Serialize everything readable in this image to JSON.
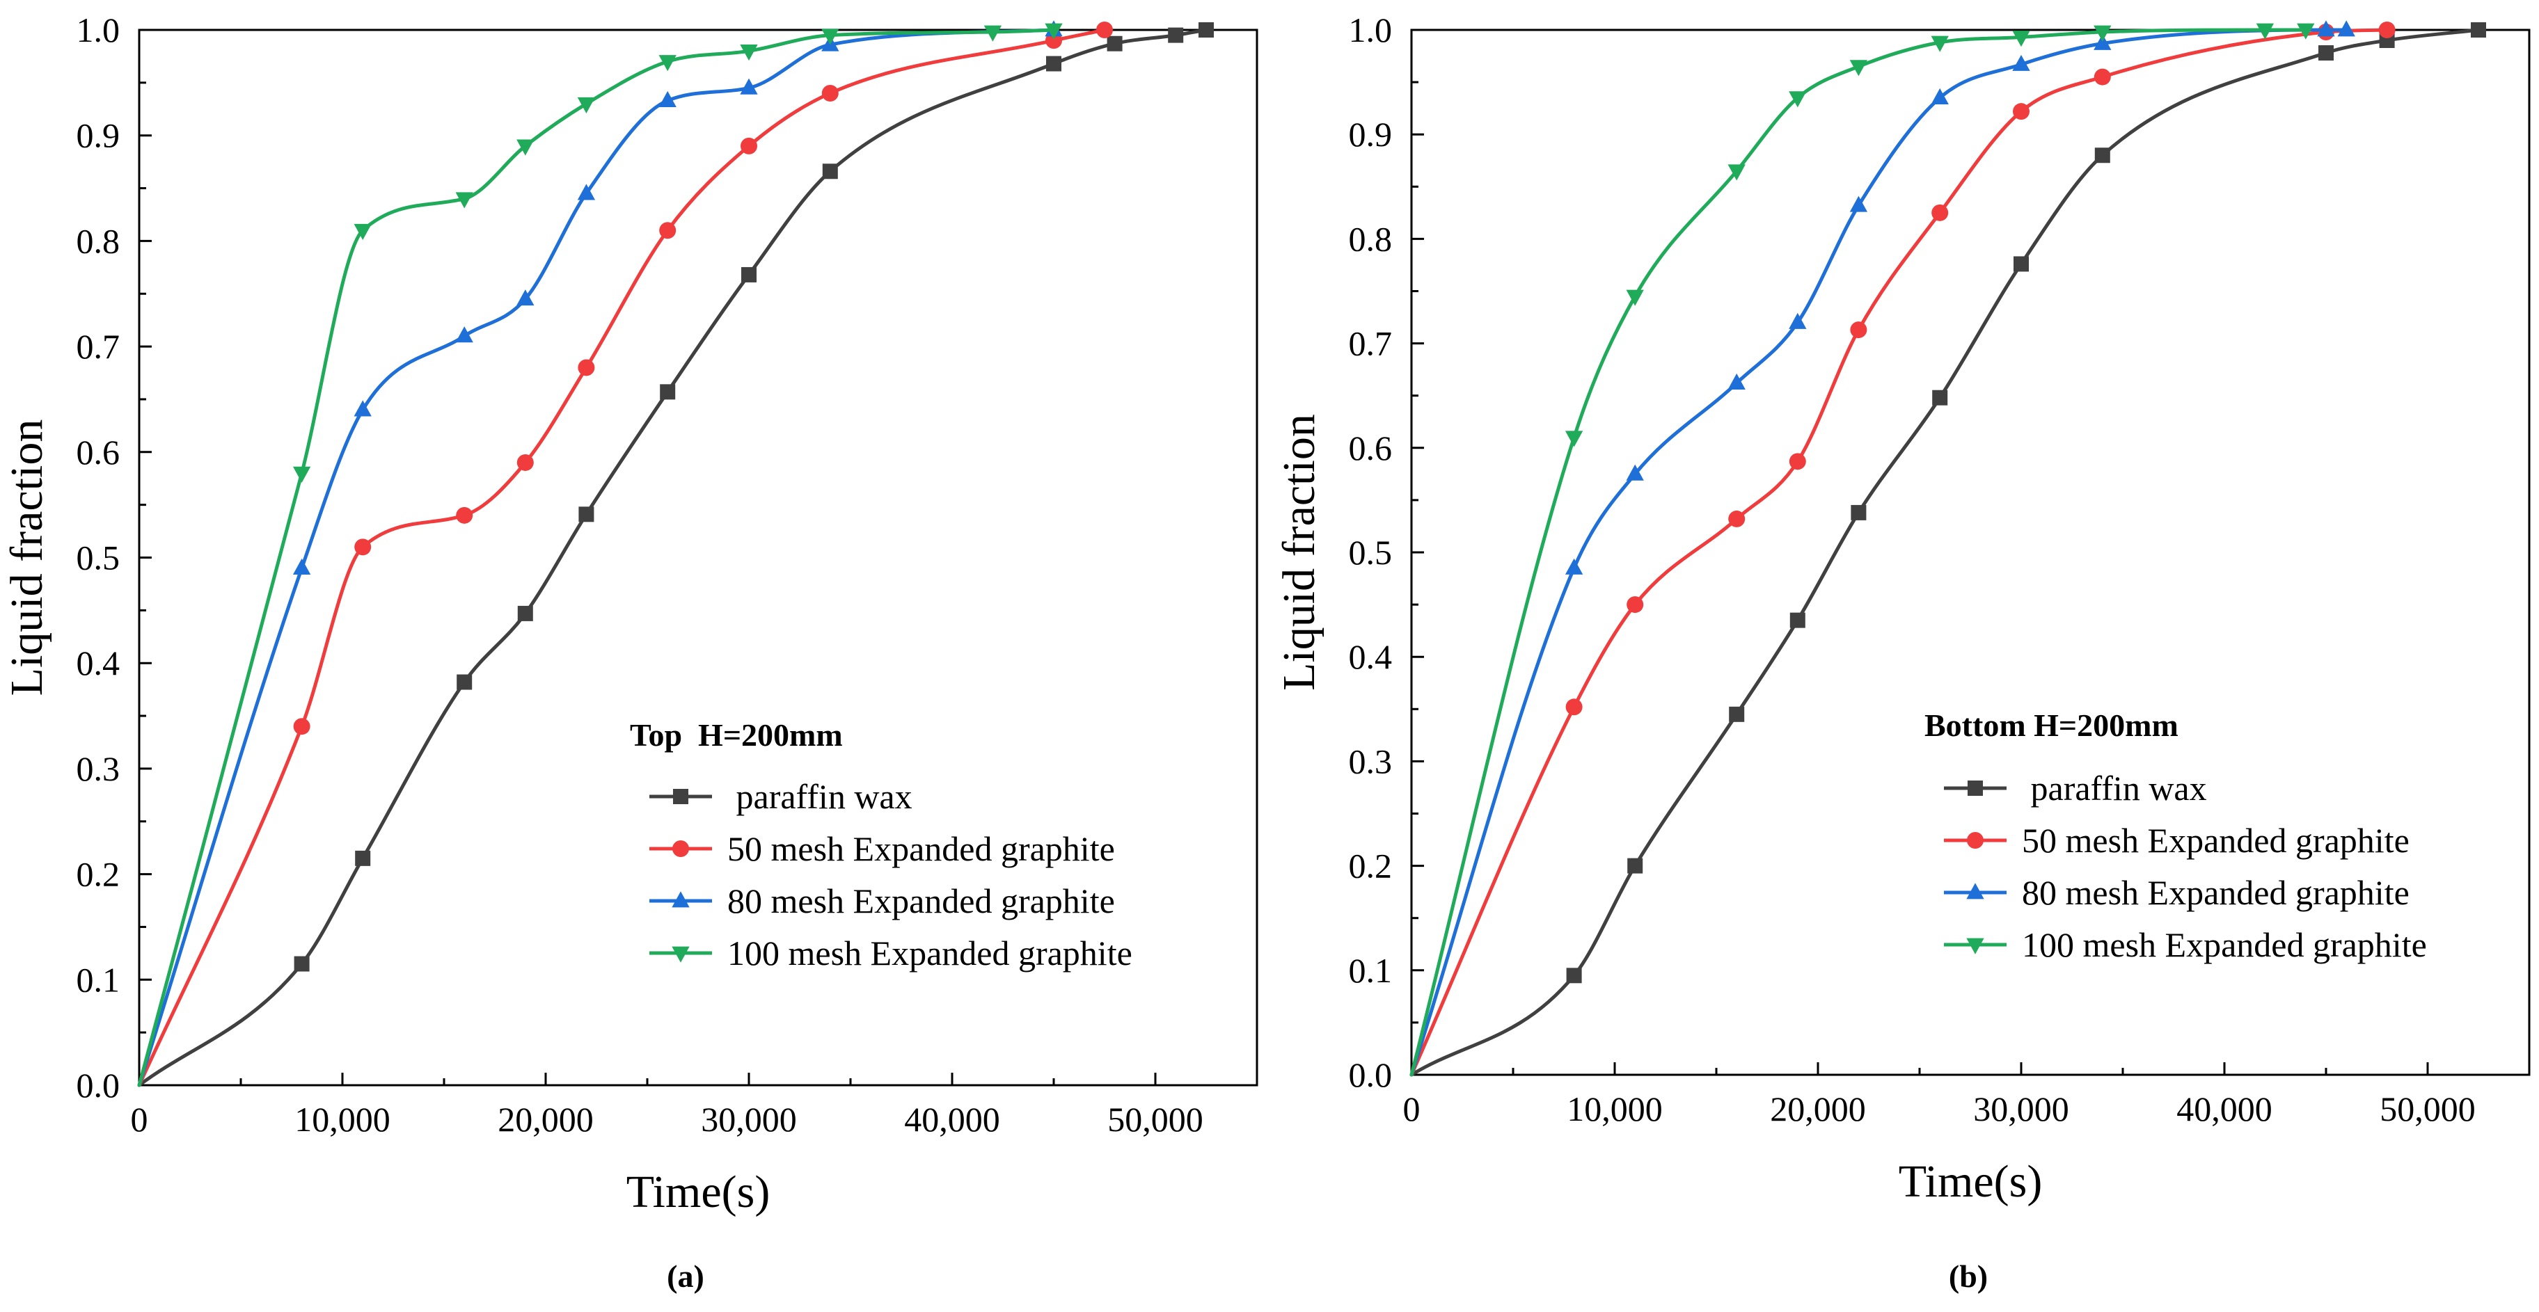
{
  "chart_data": [
    {
      "type": "line",
      "panel_label": "(a)",
      "xlabel": "Time(s)",
      "ylabel": "Liquid fraction",
      "xlim": [
        0,
        55000
      ],
      "ylim": [
        0,
        1.0
      ],
      "x_ticks": [
        0,
        10000,
        20000,
        30000,
        40000,
        50000
      ],
      "x_tick_labels": [
        "0",
        "10,000",
        "20,000",
        "30,000",
        "40,000",
        "50,000"
      ],
      "y_ticks": [
        0,
        0.1,
        0.2,
        0.3,
        0.4,
        0.5,
        0.6,
        0.7,
        0.8,
        0.9,
        1.0
      ],
      "y_tick_labels": [
        "0.0",
        "0.1",
        "0.2",
        "0.3",
        "0.4",
        "0.5",
        "0.6",
        "0.7",
        "0.8",
        "0.9",
        "1.0"
      ],
      "grid": false,
      "legend": {
        "title": "Top  H=200mm",
        "placement": "center-right"
      },
      "series": [
        {
          "name": " paraffin wax",
          "color": "#404040",
          "marker": "square",
          "x": [
            0,
            8000,
            11000,
            16000,
            19000,
            22000,
            26000,
            30000,
            34000,
            45000,
            48000,
            51000,
            52500
          ],
          "y": [
            0,
            0.115,
            0.215,
            0.382,
            0.447,
            0.541,
            0.657,
            0.768,
            0.866,
            0.968,
            0.987,
            0.995,
            1.0
          ]
        },
        {
          "name": "50 mesh Expanded graphite",
          "color": "#f03c3c",
          "marker": "circle",
          "x": [
            0,
            8000,
            11000,
            16000,
            19000,
            22000,
            26000,
            30000,
            34000,
            45000,
            47500
          ],
          "y": [
            0,
            0.34,
            0.51,
            0.54,
            0.59,
            0.68,
            0.81,
            0.89,
            0.94,
            0.99,
            1.0
          ]
        },
        {
          "name": "80 mesh Expanded graphite",
          "color": "#1f6fd9",
          "marker": "triangle-up",
          "x": [
            0,
            8000,
            11000,
            16000,
            19000,
            22000,
            26000,
            30000,
            34000,
            45000
          ],
          "y": [
            0,
            0.49,
            0.64,
            0.71,
            0.745,
            0.845,
            0.933,
            0.945,
            0.986,
            1.0
          ]
        },
        {
          "name": "100 mesh Expanded graphite",
          "color": "#1fab5a",
          "marker": "triangle-down",
          "x": [
            0,
            8000,
            11000,
            16000,
            19000,
            22000,
            26000,
            30000,
            34000,
            42000,
            45000
          ],
          "y": [
            0,
            0.58,
            0.81,
            0.84,
            0.89,
            0.93,
            0.97,
            0.98,
            0.995,
            0.998,
            1.0
          ]
        }
      ]
    },
    {
      "type": "line",
      "panel_label": "(b)",
      "xlabel": "Time(s)",
      "ylabel": "Liquid fraction",
      "xlim": [
        0,
        55000
      ],
      "ylim": [
        0,
        1.0
      ],
      "x_ticks": [
        0,
        10000,
        20000,
        30000,
        40000,
        50000
      ],
      "x_tick_labels": [
        "0",
        "10,000",
        "20,000",
        "30,000",
        "40,000",
        "50,000"
      ],
      "y_ticks": [
        0,
        0.1,
        0.2,
        0.3,
        0.4,
        0.5,
        0.6,
        0.7,
        0.8,
        0.9,
        1.0
      ],
      "y_tick_labels": [
        "0.0",
        "0.1",
        "0.2",
        "0.3",
        "0.4",
        "0.5",
        "0.6",
        "0.7",
        "0.8",
        "0.9",
        "1.0"
      ],
      "grid": false,
      "legend": {
        "title": "Bottom H=200mm",
        "placement": "center-right"
      },
      "series": [
        {
          "name": " paraffin wax",
          "color": "#404040",
          "marker": "square",
          "x": [
            0,
            8000,
            11000,
            16000,
            19000,
            22000,
            26000,
            30000,
            34000,
            45000,
            48000,
            52500
          ],
          "y": [
            0,
            0.095,
            0.2,
            0.345,
            0.435,
            0.538,
            0.648,
            0.776,
            0.88,
            0.978,
            0.99,
            1.0
          ]
        },
        {
          "name": "50 mesh Expanded graphite",
          "color": "#f03c3c",
          "marker": "circle",
          "x": [
            0,
            8000,
            11000,
            16000,
            19000,
            22000,
            26000,
            30000,
            34000,
            45000,
            48000
          ],
          "y": [
            0,
            0.352,
            0.45,
            0.532,
            0.587,
            0.713,
            0.825,
            0.922,
            0.955,
            0.998,
            1.0
          ]
        },
        {
          "name": "80 mesh Expanded graphite",
          "color": "#1f6fd9",
          "marker": "triangle-up",
          "x": [
            0,
            8000,
            11000,
            16000,
            19000,
            22000,
            26000,
            30000,
            34000,
            45000,
            46000
          ],
          "y": [
            0,
            0.485,
            0.575,
            0.662,
            0.72,
            0.832,
            0.935,
            0.967,
            0.987,
            1.0,
            1.0
          ]
        },
        {
          "name": "100 mesh Expanded graphite",
          "color": "#1fab5a",
          "marker": "triangle-down",
          "x": [
            0,
            8000,
            11000,
            16000,
            19000,
            22000,
            26000,
            30000,
            34000,
            42000,
            44000
          ],
          "y": [
            0,
            0.61,
            0.745,
            0.865,
            0.935,
            0.965,
            0.988,
            0.993,
            0.998,
            1.0,
            1.0
          ]
        }
      ]
    }
  ]
}
